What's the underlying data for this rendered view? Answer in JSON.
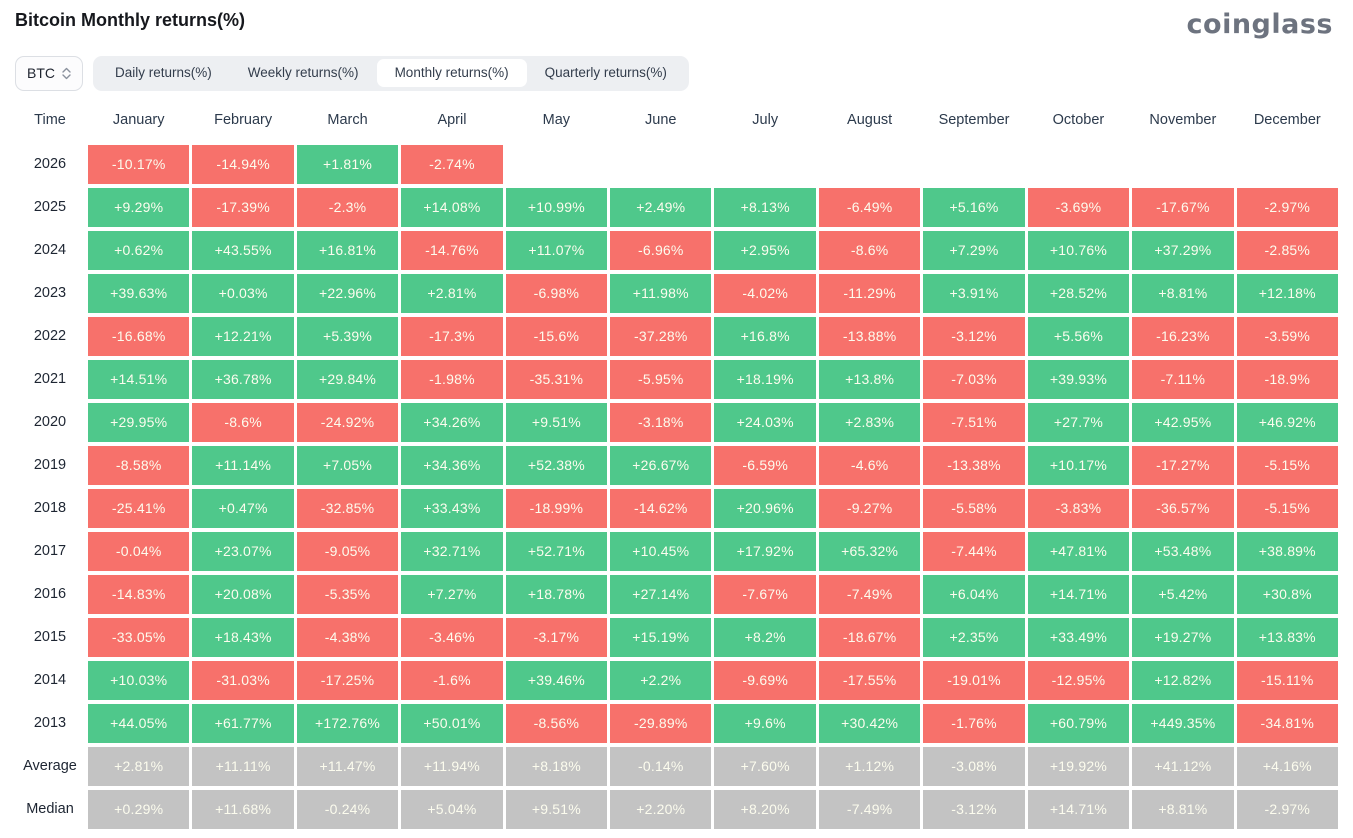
{
  "header": {
    "title": "Bitcoin Monthly returns(%)",
    "logo": "coinglass"
  },
  "controls": {
    "coin_select": {
      "value": "BTC"
    },
    "tabs": [
      {
        "label": "Daily returns(%)",
        "active": false
      },
      {
        "label": "Weekly returns(%)",
        "active": false
      },
      {
        "label": "Monthly returns(%)",
        "active": true
      },
      {
        "label": "Quarterly returns(%)",
        "active": false
      }
    ]
  },
  "chart_data": {
    "type": "heatmap",
    "title": "Bitcoin Monthly returns(%)",
    "row_header": "Time",
    "columns": [
      "January",
      "February",
      "March",
      "April",
      "May",
      "June",
      "July",
      "August",
      "September",
      "October",
      "November",
      "December"
    ],
    "rows": [
      {
        "label": "2026",
        "summary": false,
        "values": [
          "-10.17%",
          "-14.94%",
          "+1.81%",
          "-2.74%",
          null,
          null,
          null,
          null,
          null,
          null,
          null,
          null
        ]
      },
      {
        "label": "2025",
        "summary": false,
        "values": [
          "+9.29%",
          "-17.39%",
          "-2.3%",
          "+14.08%",
          "+10.99%",
          "+2.49%",
          "+8.13%",
          "-6.49%",
          "+5.16%",
          "-3.69%",
          "-17.67%",
          "-2.97%"
        ]
      },
      {
        "label": "2024",
        "summary": false,
        "values": [
          "+0.62%",
          "+43.55%",
          "+16.81%",
          "-14.76%",
          "+11.07%",
          "-6.96%",
          "+2.95%",
          "-8.6%",
          "+7.29%",
          "+10.76%",
          "+37.29%",
          "-2.85%"
        ]
      },
      {
        "label": "2023",
        "summary": false,
        "values": [
          "+39.63%",
          "+0.03%",
          "+22.96%",
          "+2.81%",
          "-6.98%",
          "+11.98%",
          "-4.02%",
          "-11.29%",
          "+3.91%",
          "+28.52%",
          "+8.81%",
          "+12.18%"
        ]
      },
      {
        "label": "2022",
        "summary": false,
        "values": [
          "-16.68%",
          "+12.21%",
          "+5.39%",
          "-17.3%",
          "-15.6%",
          "-37.28%",
          "+16.8%",
          "-13.88%",
          "-3.12%",
          "+5.56%",
          "-16.23%",
          "-3.59%"
        ]
      },
      {
        "label": "2021",
        "summary": false,
        "values": [
          "+14.51%",
          "+36.78%",
          "+29.84%",
          "-1.98%",
          "-35.31%",
          "-5.95%",
          "+18.19%",
          "+13.8%",
          "-7.03%",
          "+39.93%",
          "-7.11%",
          "-18.9%"
        ]
      },
      {
        "label": "2020",
        "summary": false,
        "values": [
          "+29.95%",
          "-8.6%",
          "-24.92%",
          "+34.26%",
          "+9.51%",
          "-3.18%",
          "+24.03%",
          "+2.83%",
          "-7.51%",
          "+27.7%",
          "+42.95%",
          "+46.92%"
        ]
      },
      {
        "label": "2019",
        "summary": false,
        "values": [
          "-8.58%",
          "+11.14%",
          "+7.05%",
          "+34.36%",
          "+52.38%",
          "+26.67%",
          "-6.59%",
          "-4.6%",
          "-13.38%",
          "+10.17%",
          "-17.27%",
          "-5.15%"
        ]
      },
      {
        "label": "2018",
        "summary": false,
        "values": [
          "-25.41%",
          "+0.47%",
          "-32.85%",
          "+33.43%",
          "-18.99%",
          "-14.62%",
          "+20.96%",
          "-9.27%",
          "-5.58%",
          "-3.83%",
          "-36.57%",
          "-5.15%"
        ]
      },
      {
        "label": "2017",
        "summary": false,
        "values": [
          "-0.04%",
          "+23.07%",
          "-9.05%",
          "+32.71%",
          "+52.71%",
          "+10.45%",
          "+17.92%",
          "+65.32%",
          "-7.44%",
          "+47.81%",
          "+53.48%",
          "+38.89%"
        ]
      },
      {
        "label": "2016",
        "summary": false,
        "values": [
          "-14.83%",
          "+20.08%",
          "-5.35%",
          "+7.27%",
          "+18.78%",
          "+27.14%",
          "-7.67%",
          "-7.49%",
          "+6.04%",
          "+14.71%",
          "+5.42%",
          "+30.8%"
        ]
      },
      {
        "label": "2015",
        "summary": false,
        "values": [
          "-33.05%",
          "+18.43%",
          "-4.38%",
          "-3.46%",
          "-3.17%",
          "+15.19%",
          "+8.2%",
          "-18.67%",
          "+2.35%",
          "+33.49%",
          "+19.27%",
          "+13.83%"
        ]
      },
      {
        "label": "2014",
        "summary": false,
        "values": [
          "+10.03%",
          "-31.03%",
          "-17.25%",
          "-1.6%",
          "+39.46%",
          "+2.2%",
          "-9.69%",
          "-17.55%",
          "-19.01%",
          "-12.95%",
          "+12.82%",
          "-15.11%"
        ]
      },
      {
        "label": "2013",
        "summary": false,
        "values": [
          "+44.05%",
          "+61.77%",
          "+172.76%",
          "+50.01%",
          "-8.56%",
          "-29.89%",
          "+9.6%",
          "+30.42%",
          "-1.76%",
          "+60.79%",
          "+449.35%",
          "-34.81%"
        ]
      },
      {
        "label": "Average",
        "summary": true,
        "values": [
          "+2.81%",
          "+11.11%",
          "+11.47%",
          "+11.94%",
          "+8.18%",
          "-0.14%",
          "+7.60%",
          "+1.12%",
          "-3.08%",
          "+19.92%",
          "+41.12%",
          "+4.16%"
        ]
      },
      {
        "label": "Median",
        "summary": true,
        "values": [
          "+0.29%",
          "+11.68%",
          "-0.24%",
          "+5.04%",
          "+9.51%",
          "+2.20%",
          "+8.20%",
          "-7.49%",
          "-3.12%",
          "+14.71%",
          "+8.81%",
          "-2.97%"
        ]
      }
    ],
    "colors": {
      "positive": "#4fc88b",
      "negative": "#f7716b",
      "summary": "#c3c3c3",
      "cell_text": "#fcfcee"
    }
  }
}
